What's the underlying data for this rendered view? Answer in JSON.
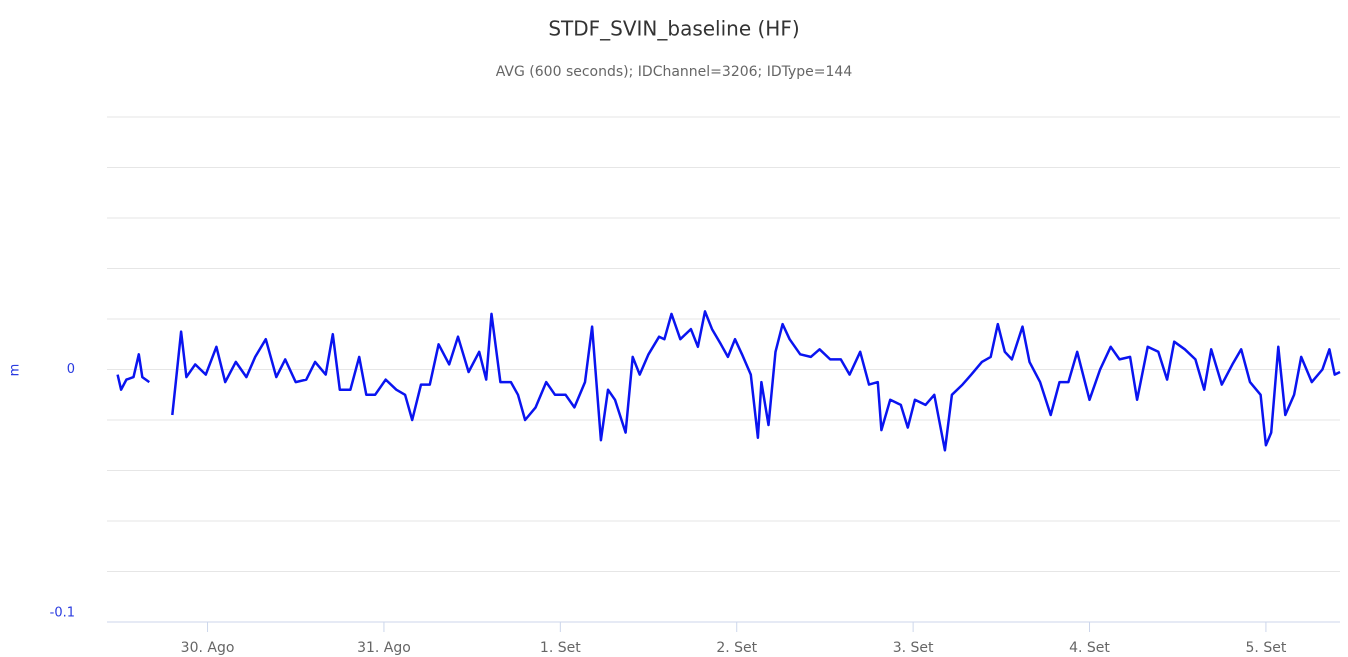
{
  "chart_data": {
    "type": "line",
    "title": "STDF_SVIN_baseline (HF)",
    "subtitle": "AVG (600 seconds); IDChannel=3206; IDType=144",
    "y_label": "m",
    "color": "#0a14f0",
    "x": [
      -0.51,
      -0.49,
      -0.46,
      -0.42,
      -0.39,
      -0.37,
      -0.33,
      -0.27,
      -0.2,
      -0.18,
      -0.15,
      -0.12,
      -0.07,
      -0.01,
      0.05,
      0.1,
      0.16,
      0.22,
      0.27,
      0.33,
      0.39,
      0.44,
      0.5,
      0.56,
      0.61,
      0.67,
      0.71,
      0.75,
      0.81,
      0.86,
      0.9,
      0.95,
      1.01,
      1.07,
      1.12,
      1.16,
      1.21,
      1.26,
      1.31,
      1.37,
      1.42,
      1.48,
      1.54,
      1.58,
      1.61,
      1.66,
      1.72,
      1.76,
      1.8,
      1.86,
      1.92,
      1.97,
      2.03,
      2.08,
      2.14,
      2.18,
      2.23,
      2.27,
      2.31,
      2.37,
      2.41,
      2.45,
      2.5,
      2.56,
      2.59,
      2.63,
      2.68,
      2.74,
      2.78,
      2.82,
      2.86,
      2.91,
      2.95,
      2.99,
      3.03,
      3.08,
      3.12,
      3.14,
      3.18,
      3.22,
      3.26,
      3.3,
      3.36,
      3.42,
      3.47,
      3.53,
      3.59,
      3.64,
      3.7,
      3.75,
      3.8,
      3.82,
      3.87,
      3.93,
      3.97,
      4.01,
      4.07,
      4.12,
      4.18,
      4.22,
      4.28,
      4.33,
      4.39,
      4.44,
      4.48,
      4.52,
      4.56,
      4.62,
      4.66,
      4.72,
      4.78,
      4.83,
      4.88,
      4.93,
      5.0,
      5.06,
      5.12,
      5.17,
      5.23,
      5.27,
      5.33,
      5.39,
      5.44,
      5.48,
      5.54,
      5.6,
      5.65,
      5.69,
      5.75,
      5.81,
      5.86,
      5.91,
      5.97,
      6.0,
      6.03,
      6.07,
      6.11,
      6.16,
      6.2,
      6.26,
      6.32,
      6.36,
      6.39,
      6.42
    ],
    "values": [
      -0.002,
      -0.008,
      -0.004,
      -0.003,
      0.006,
      -0.003,
      -0.005,
      null,
      -0.018,
      -0.005,
      0.015,
      -0.003,
      0.002,
      -0.002,
      0.009,
      -0.005,
      0.003,
      -0.003,
      0.005,
      0.012,
      -0.003,
      0.004,
      -0.005,
      -0.004,
      0.003,
      -0.002,
      0.014,
      -0.008,
      -0.008,
      0.005,
      -0.01,
      -0.01,
      -0.004,
      -0.008,
      -0.01,
      -0.02,
      -0.006,
      -0.006,
      0.01,
      0.002,
      0.013,
      -0.001,
      0.007,
      -0.004,
      0.022,
      -0.005,
      -0.005,
      -0.01,
      -0.02,
      -0.015,
      -0.005,
      -0.01,
      -0.01,
      -0.015,
      -0.005,
      0.017,
      -0.028,
      -0.008,
      -0.012,
      -0.025,
      0.005,
      -0.002,
      0.006,
      0.013,
      0.012,
      0.022,
      0.012,
      0.016,
      0.009,
      0.023,
      0.016,
      0.01,
      0.005,
      0.012,
      0.006,
      -0.002,
      -0.027,
      -0.005,
      -0.022,
      0.007,
      0.018,
      0.012,
      0.006,
      0.005,
      0.008,
      0.004,
      0.004,
      -0.002,
      0.007,
      -0.006,
      -0.005,
      -0.024,
      -0.012,
      -0.014,
      -0.023,
      -0.012,
      -0.014,
      -0.01,
      -0.032,
      -0.01,
      -0.006,
      -0.002,
      0.003,
      0.005,
      0.018,
      0.007,
      0.004,
      0.017,
      0.003,
      -0.005,
      -0.018,
      -0.005,
      -0.005,
      0.007,
      -0.012,
      0.0,
      0.009,
      0.004,
      0.005,
      -0.012,
      0.009,
      0.007,
      -0.004,
      0.011,
      0.008,
      0.004,
      -0.008,
      0.008,
      -0.006,
      0.002,
      0.008,
      -0.005,
      -0.01,
      -0.03,
      -0.025,
      0.009,
      -0.018,
      -0.01,
      0.005,
      -0.005,
      0.0,
      0.008,
      -0.002,
      -0.001
    ],
    "xlim": [
      -0.57,
      6.42
    ],
    "xticks": [
      {
        "value": 0,
        "label": "30. Ago"
      },
      {
        "value": 1,
        "label": "31. Ago"
      },
      {
        "value": 2,
        "label": "1. Set"
      },
      {
        "value": 3,
        "label": "2. Set"
      },
      {
        "value": 4,
        "label": "3. Set"
      },
      {
        "value": 5,
        "label": "4. Set"
      },
      {
        "value": 6,
        "label": "5. Set"
      }
    ],
    "ylim": [
      -0.1,
      0.1
    ],
    "yticks": [
      -0.1,
      0
    ],
    "ygrid": [
      -0.08,
      -0.06,
      -0.04,
      -0.02,
      0.02,
      0.04,
      0.06,
      0.08,
      0.1
    ],
    "grid": true
  }
}
